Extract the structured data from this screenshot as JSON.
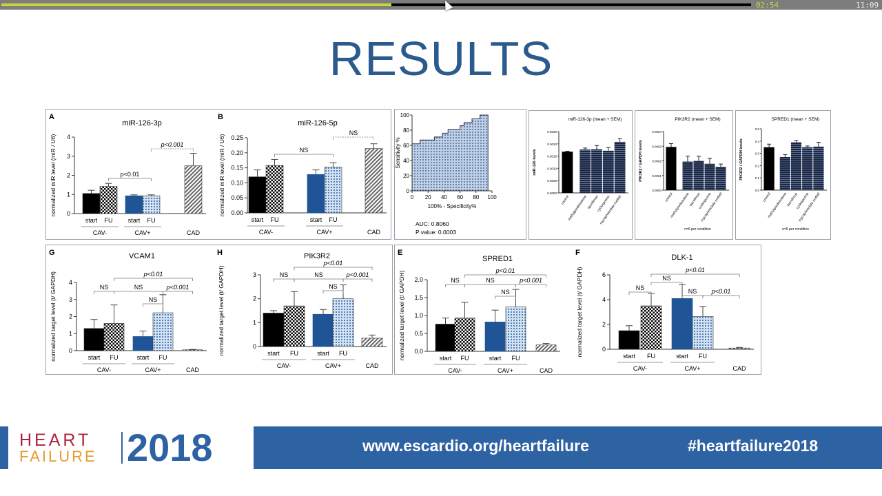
{
  "player": {
    "elapsed": "02:54",
    "total": "11:09",
    "progress_fraction": 0.52,
    "elapsed_color": "#c8d43a"
  },
  "slide": {
    "title": "RESULTS"
  },
  "footer": {
    "logo_heart": "HEART",
    "logo_failure": "FAILURE",
    "logo_year": "2018",
    "url": "www.escardio.org/heartfailure",
    "hashtag": "#heartfailure2018"
  },
  "colors": {
    "cav_minus_start": "#000000",
    "cav_plus_start": "#1f5596",
    "cav_plus_fu": "#cfe0f3",
    "cad": "#9a9a9a",
    "title": "#2a5a8e",
    "footer": "#2d62a3"
  },
  "chart_data": [
    {
      "id": "A",
      "panel": "A",
      "type": "bar",
      "title": "miR-126-3p",
      "ylabel": "normalized miR level (miR / U6)",
      "ylim": [
        0,
        4
      ],
      "yticks": [
        "0",
        "1",
        "2",
        "3",
        "4"
      ],
      "bar_labels": [
        "start",
        "FU",
        "start",
        "FU",
        ""
      ],
      "groups": [
        "CAV-",
        "CAV+",
        "CAD"
      ],
      "values": [
        1.05,
        1.42,
        0.93,
        0.93,
        2.5
      ],
      "error_upper": [
        1.22,
        1.58,
        0.98,
        0.98,
        3.15
      ],
      "brackets": [
        {
          "from": 1,
          "to": 3,
          "label": "p<0.01",
          "dashed": false,
          "italic": false
        },
        {
          "from": 3,
          "to": 4,
          "label": "p<0.001",
          "dashed": true,
          "italic": true
        }
      ]
    },
    {
      "id": "B",
      "panel": "B",
      "type": "bar",
      "title": "miR-126-5p",
      "ylabel": "normalized miR level (miR / U6)",
      "ylim": [
        0,
        0.25
      ],
      "yticks": [
        "0.00",
        "0.05",
        "0.10",
        "0.15",
        "0.20",
        "0.25"
      ],
      "bar_labels": [
        "start",
        "FU",
        "start",
        "FU",
        ""
      ],
      "groups": [
        "CAV-",
        "CAV+",
        "CAD"
      ],
      "values": [
        0.12,
        0.158,
        0.128,
        0.152,
        0.214
      ],
      "error_upper": [
        0.143,
        0.178,
        0.143,
        0.167,
        0.23
      ],
      "brackets": [
        {
          "from": 1,
          "to": 3,
          "label": "NS",
          "dashed": false,
          "italic": false
        },
        {
          "from": 3,
          "to": 4,
          "label": "NS",
          "dashed": true,
          "italic": false
        }
      ]
    },
    {
      "id": "ROC",
      "type": "line",
      "xlabel": "100% - Specificity%",
      "ylabel": "Sensitivity %",
      "xlim": [
        0,
        100
      ],
      "ylim": [
        0,
        100
      ],
      "xticks": [
        "0",
        "20",
        "40",
        "60",
        "80",
        "100"
      ],
      "yticks": [
        "0",
        "20",
        "40",
        "60",
        "80",
        "100"
      ],
      "x": [
        0,
        10,
        10,
        28,
        28,
        38,
        38,
        45,
        45,
        60,
        60,
        65,
        65,
        75,
        75,
        85,
        85,
        95
      ],
      "y": [
        62,
        62,
        67,
        67,
        71,
        71,
        76,
        76,
        81,
        81,
        86,
        86,
        90,
        90,
        95,
        95,
        100,
        100
      ],
      "auc": "AUC: 0.8060",
      "p_value": "P value: 0.0003"
    },
    {
      "id": "M1",
      "type": "bar",
      "title": "miR-126-3p (mean + SEM)",
      "ylabel": "miR-126 levels",
      "ylim": [
        0,
        0.0025
      ],
      "yticks": [
        "0.0000",
        "0.0005",
        "0.0010",
        "0.0015",
        "0.0020",
        "0.0025"
      ],
      "categories": [
        "control",
        "methylprednisolone",
        "tacrolimus",
        "cyclosporine",
        "mycophenolate mofetil"
      ],
      "values": [
        0.00168,
        0.00177,
        0.00178,
        0.00172,
        0.00208
      ],
      "error_upper": [
        0.0017,
        0.00183,
        0.00193,
        0.00185,
        0.00221
      ],
      "note": ""
    },
    {
      "id": "M2",
      "type": "bar",
      "title": "PIK3R2 (mean + SEM)",
      "ylabel": "PIK3R2 / GAPDH levels",
      "ylim": [
        0,
        0.0004
      ],
      "yticks": [
        "0.0000",
        "0.0001",
        "0.0002",
        "0.0003",
        "0.0004"
      ],
      "categories": [
        "control",
        "methylprednisolone",
        "tacrolimus",
        "cyclosporine",
        "mycophenolate mofetil"
      ],
      "values": [
        0.000295,
        0.000195,
        0.0002,
        0.00018,
        0.00016
      ],
      "error_upper": [
        0.000318,
        0.000232,
        0.000232,
        0.000218,
        0.000178
      ],
      "note": "n=6 per condition"
    },
    {
      "id": "M3",
      "type": "bar",
      "title": "SPRED1 (mean + SEM)",
      "ylabel": "PIK3R2 / GAPDH levels",
      "ylim": [
        0,
        0.5
      ],
      "yticks": [
        "0.0",
        "0.1",
        "0.2",
        "0.3",
        "0.4",
        "0.5"
      ],
      "categories": [
        "control",
        "methylprednisolone",
        "tacrolimus",
        "cyclosporine",
        "mycophenolate mofetil"
      ],
      "values": [
        0.35,
        0.27,
        0.39,
        0.35,
        0.355
      ],
      "error_upper": [
        0.375,
        0.29,
        0.405,
        0.36,
        0.39
      ],
      "note": "n=6 per condition"
    },
    {
      "id": "G",
      "panel": "G",
      "type": "bar",
      "title": "VCAM1",
      "ylabel": "normalized target level (t/ GAPDH)",
      "ylim": [
        0,
        4
      ],
      "yticks": [
        "0",
        "1",
        "2",
        "3",
        "4"
      ],
      "bar_labels": [
        "start",
        "FU",
        "start",
        "FU",
        ""
      ],
      "groups": [
        "CAV-",
        "CAV+",
        "CAD"
      ],
      "values": [
        1.3,
        1.6,
        0.83,
        2.22,
        0.05
      ],
      "error_upper": [
        1.83,
        2.68,
        1.15,
        3.28,
        0.07
      ],
      "brackets": [
        {
          "from": 2,
          "to": 3,
          "label": "NS",
          "dashed": false,
          "italic": false
        },
        {
          "from": 0,
          "to": 1,
          "label": "NS",
          "dashed": false,
          "italic": false
        },
        {
          "from": 1,
          "to": 3,
          "label": "NS",
          "dashed": false,
          "italic": false
        },
        {
          "from": 3,
          "to": 4,
          "label": "p<0.001",
          "dashed": false,
          "italic": true
        },
        {
          "from": 1,
          "to": 4,
          "label": "p<0.01",
          "dashed": false,
          "italic": true
        }
      ]
    },
    {
      "id": "H",
      "panel": "H",
      "type": "bar",
      "title": "PIK3R2",
      "ylabel": "normalized target level (t/ GAPDH)",
      "ylim": [
        0,
        3
      ],
      "yticks": [
        "0",
        "1",
        "2",
        "3"
      ],
      "bar_labels": [
        "start",
        "FU",
        "start",
        "FU",
        ""
      ],
      "groups": [
        "CAV-",
        "CAV+",
        "CAD"
      ],
      "values": [
        1.4,
        1.7,
        1.35,
        2.0,
        0.35
      ],
      "error_upper": [
        1.5,
        2.3,
        1.55,
        2.58,
        0.48
      ],
      "brackets": [
        {
          "from": 2,
          "to": 3,
          "label": "NS",
          "dashed": false,
          "italic": false
        },
        {
          "from": 0,
          "to": 1,
          "label": "NS",
          "dashed": false,
          "italic": false
        },
        {
          "from": 1,
          "to": 3,
          "label": "NS",
          "dashed": false,
          "italic": false
        },
        {
          "from": 3,
          "to": 4,
          "label": "p<0.001",
          "dashed": false,
          "italic": true
        },
        {
          "from": 1,
          "to": 4,
          "label": "p<0.01",
          "dashed": false,
          "italic": true
        }
      ]
    },
    {
      "id": "E",
      "panel": "E",
      "type": "bar",
      "title": "SPRED1",
      "ylabel": "normalized target level (t/ GAPDH)",
      "ylim": [
        0,
        2
      ],
      "yticks": [
        "0.0",
        "0.5",
        "1.0",
        "1.5",
        "2.0"
      ],
      "bar_labels": [
        "start",
        "FU",
        "start",
        "FU",
        ""
      ],
      "groups": [
        "CAV-",
        "CAV+",
        "CAD"
      ],
      "values": [
        0.76,
        0.93,
        0.82,
        1.24,
        0.18
      ],
      "error_upper": [
        0.93,
        1.37,
        1.15,
        1.73,
        0.22
      ],
      "brackets": [
        {
          "from": 2,
          "to": 3,
          "label": "NS",
          "dashed": false,
          "italic": false
        },
        {
          "from": 0,
          "to": 1,
          "label": "NS",
          "dashed": false,
          "italic": false
        },
        {
          "from": 1,
          "to": 3,
          "label": "NS",
          "dashed": false,
          "italic": false
        },
        {
          "from": 3,
          "to": 4,
          "label": "p<0.001",
          "dashed": false,
          "italic": true
        },
        {
          "from": 1,
          "to": 4,
          "label": "p<0.01",
          "dashed": false,
          "italic": true
        }
      ]
    },
    {
      "id": "F",
      "panel": "F",
      "type": "bar",
      "title": "DLK-1",
      "ylabel": "normalized target level (t/ GAPDH)",
      "ylim": [
        0,
        6
      ],
      "yticks": [
        "0",
        "2",
        "4",
        "6"
      ],
      "bar_labels": [
        "start",
        "FU",
        "start",
        "FU",
        ""
      ],
      "groups": [
        "CAV-",
        "CAV+",
        "CAD"
      ],
      "values": [
        1.5,
        3.5,
        4.1,
        2.65,
        0.1
      ],
      "error_upper": [
        1.9,
        4.5,
        5.25,
        3.45,
        0.15
      ],
      "brackets": [
        {
          "from": 0,
          "to": 1,
          "label": "NS",
          "dashed": false,
          "italic": false
        },
        {
          "from": 2,
          "to": 3,
          "label": "NS",
          "dashed": false,
          "italic": false
        },
        {
          "from": 3,
          "to": 4,
          "label": "p<0.01",
          "dashed": false,
          "italic": true
        },
        {
          "from": 1,
          "to": 2,
          "label": "NS",
          "dashed": false,
          "italic": false
        },
        {
          "from": 1,
          "to": 4,
          "label": "p<0.01",
          "dashed": false,
          "italic": true
        }
      ]
    }
  ]
}
